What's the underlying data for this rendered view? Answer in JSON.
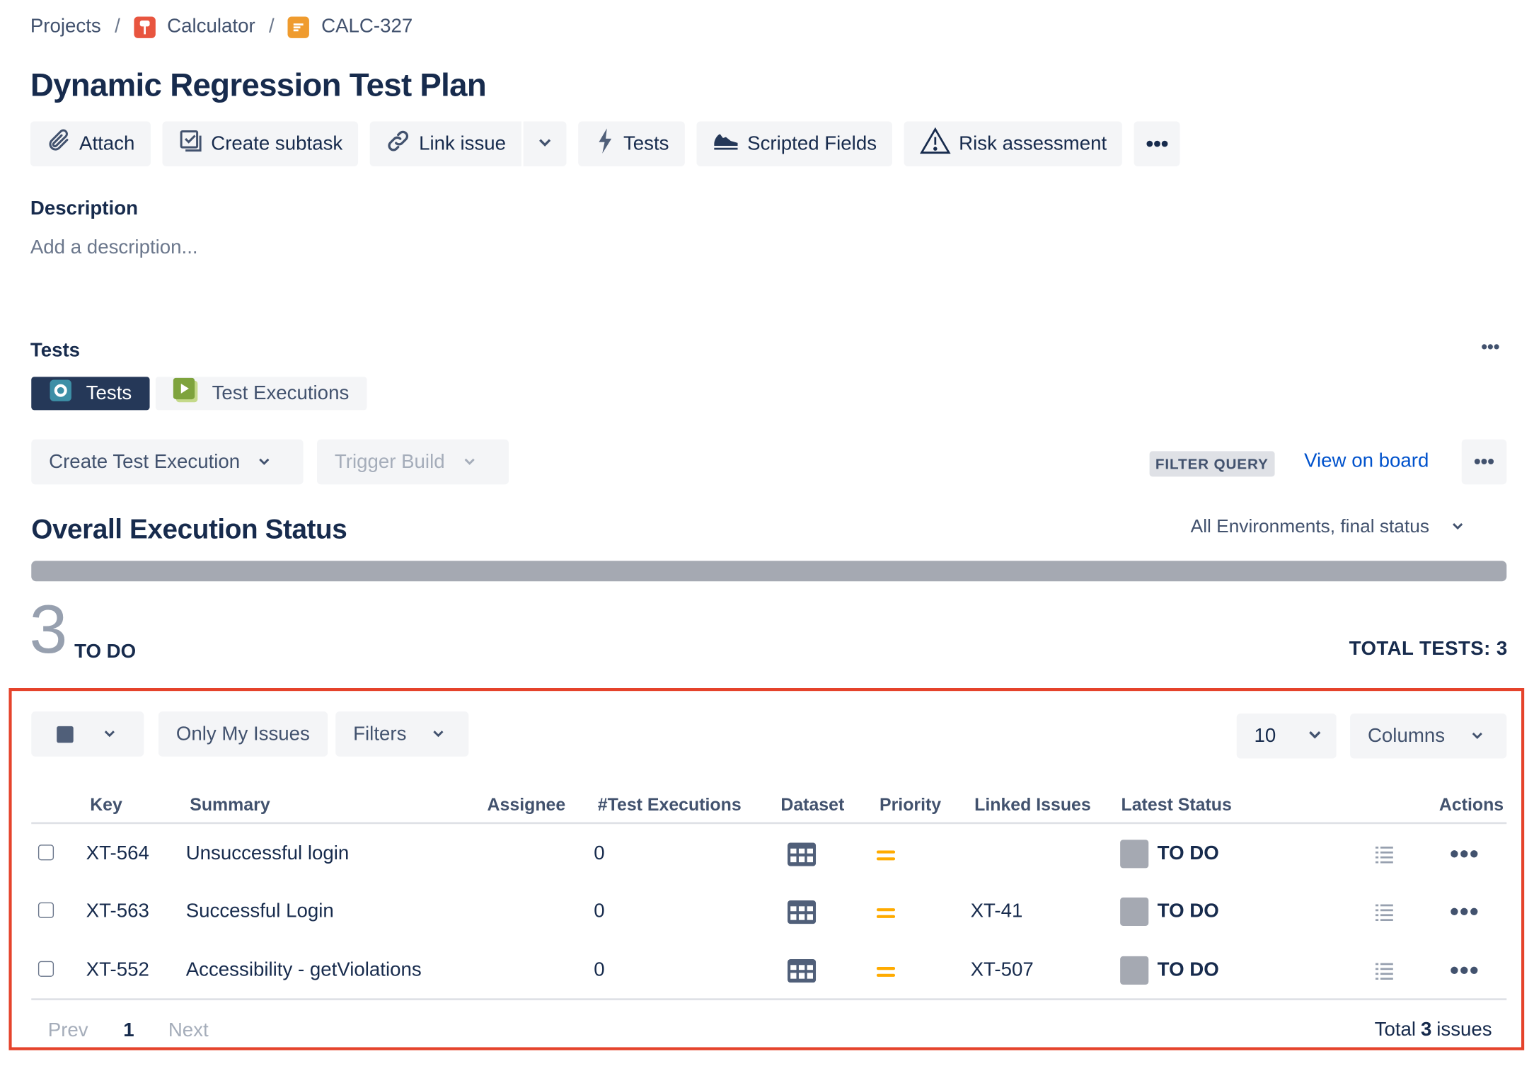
{
  "breadcrumb": {
    "projects": "Projects",
    "separator": "/",
    "project": "Calculator",
    "issue_key": "CALC-327"
  },
  "issue": {
    "title": "Dynamic Regression Test Plan"
  },
  "toolbar": {
    "attach": "Attach",
    "create_subtask": "Create subtask",
    "link_issue": "Link issue",
    "tests": "Tests",
    "scripted_fields": "Scripted Fields",
    "risk_assessment": "Risk assessment",
    "more": "•••"
  },
  "description": {
    "label": "Description",
    "placeholder": "Add a description..."
  },
  "tests_panel": {
    "label": "Tests",
    "more": "•••",
    "tabs": [
      {
        "label": "Tests",
        "active": true
      },
      {
        "label": "Test Executions",
        "active": false
      }
    ],
    "create_execution": "Create Test Execution",
    "trigger_build": "Trigger Build",
    "filter_query": "FILTER QUERY",
    "view_on_board": "View on board",
    "more_actions": "•••"
  },
  "execution_status": {
    "title": "Overall Execution Status",
    "environment": "All Environments, final status",
    "todo_count": "3",
    "todo_label": "TO DO",
    "todo_fraction": 1.0,
    "bar_color": "#a5a9b2",
    "total_tests": "TOTAL TESTS: 3"
  },
  "table_controls": {
    "only_my_issues": "Only My Issues",
    "filters": "Filters",
    "page_size": "10",
    "columns": "Columns"
  },
  "table": {
    "headers": {
      "key": "Key",
      "summary": "Summary",
      "assignee": "Assignee",
      "executions": "#Test Executions",
      "dataset": "Dataset",
      "priority": "Priority",
      "linked": "Linked Issues",
      "status": "Latest Status",
      "actions": "Actions"
    },
    "rows": [
      {
        "key": "XT-564",
        "summary": "Unsuccessful login",
        "executions": "0",
        "dataset": "grid-icon",
        "priority": "medium",
        "linked": "",
        "status": "TO DO"
      },
      {
        "key": "XT-563",
        "summary": "Successful Login",
        "executions": "0",
        "dataset": "grid-icon",
        "priority": "medium",
        "linked": "XT-41",
        "status": "TO DO"
      },
      {
        "key": "XT-552",
        "summary": "Accessibility - getViolations",
        "executions": "0",
        "dataset": "grid-icon",
        "priority": "medium",
        "linked": "XT-507",
        "status": "TO DO"
      }
    ],
    "row_more": "•••"
  },
  "pagination": {
    "prev": "Prev",
    "current": "1",
    "next": "Next",
    "total_prefix": "Total",
    "total_count": "3",
    "total_suffix": "issues"
  },
  "colors": {
    "link": "#0052cc",
    "priority_medium": "#ffab00",
    "highlight_border": "#e5432b",
    "active_tab": "#253858"
  }
}
